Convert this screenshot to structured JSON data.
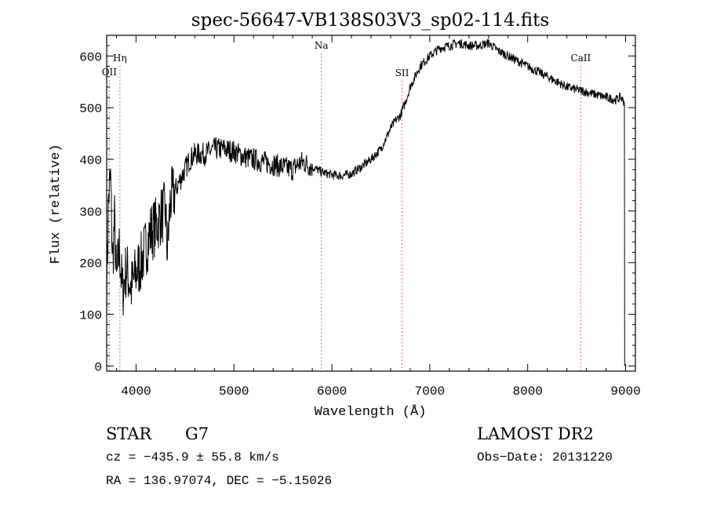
{
  "chart_data": {
    "type": "line",
    "title": "spec-56647-VB138S03V3_sp02-114.fits",
    "xlabel": "Wavelength (Å)",
    "ylabel": "Flux (relative)",
    "xlim": [
      3700,
      9100
    ],
    "ylim": [
      -10,
      640
    ],
    "x_ticks": [
      4000,
      5000,
      6000,
      7000,
      8000,
      9000
    ],
    "y_ticks": [
      0,
      100,
      200,
      300,
      400,
      500,
      600
    ],
    "grid": false,
    "line_color": "#000000",
    "marker_color": "#d04040",
    "series": [
      {
        "x": [
          3700,
          3720,
          3740,
          3760,
          3780,
          3800,
          3830,
          3860,
          3900,
          3950,
          4000,
          4050,
          4100,
          4150,
          4200,
          4250,
          4300,
          4320,
          4350,
          4400,
          4450,
          4500,
          4550,
          4600,
          4700,
          4800,
          4900,
          5000,
          5100,
          5200,
          5300,
          5400,
          5500,
          5600,
          5650,
          5700,
          5800,
          5900,
          6000,
          6100,
          6200,
          6300,
          6400,
          6500,
          6550,
          6600,
          6650,
          6700,
          6750,
          6800,
          6850,
          6900,
          6950,
          7000,
          7100,
          7200,
          7300,
          7400,
          7500,
          7600,
          7700,
          7800,
          7900,
          8000,
          8100,
          8200,
          8300,
          8400,
          8500,
          8600,
          8700,
          8800,
          8900,
          8950,
          8990
        ],
        "y": [
          150,
          330,
          360,
          200,
          280,
          160,
          230,
          140,
          190,
          150,
          180,
          200,
          230,
          260,
          270,
          290,
          300,
          220,
          320,
          340,
          360,
          380,
          400,
          410,
          410,
          420,
          420,
          415,
          405,
          400,
          395,
          390,
          385,
          380,
          390,
          395,
          385,
          375,
          370,
          368,
          372,
          385,
          400,
          420,
          440,
          460,
          475,
          485,
          510,
          540,
          560,
          580,
          590,
          600,
          615,
          620,
          625,
          620,
          620,
          625,
          610,
          600,
          590,
          580,
          570,
          560,
          550,
          540,
          535,
          530,
          525,
          520,
          515,
          520,
          510
        ]
      }
    ],
    "line_markers": [
      {
        "name": "OII",
        "x": 3727
      },
      {
        "name": "Hη",
        "x": 3835
      },
      {
        "name": "Na",
        "x": 5893
      },
      {
        "name": "SII",
        "x": 6717
      },
      {
        "name": "CaII",
        "x": 8542
      }
    ]
  },
  "info": {
    "class_type": "STAR",
    "subclass": "G7",
    "survey": "LAMOST DR2",
    "redshift": "cz = −435.9 ± 55.8 km/s",
    "obs_date": "Obs−Date: 20131220",
    "coords": "RA = 136.97074, DEC =  −5.15026"
  }
}
